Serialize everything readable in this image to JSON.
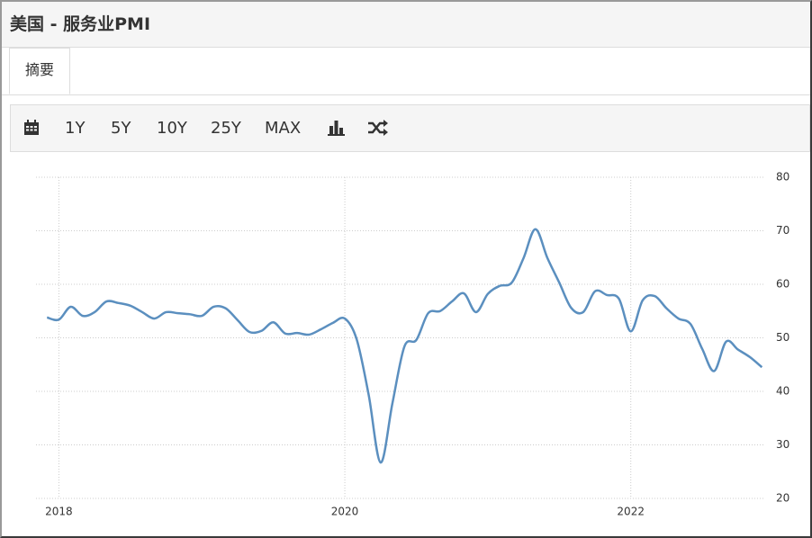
{
  "header": {
    "title": "美国 - 服务业PMI"
  },
  "tabs": [
    "摘要"
  ],
  "toolbar": {
    "ranges": [
      "1Y",
      "5Y",
      "10Y",
      "25Y",
      "MAX"
    ]
  },
  "chart_data": {
    "type": "line",
    "x": [
      2017.917,
      2018,
      2018.083,
      2018.167,
      2018.25,
      2018.333,
      2018.417,
      2018.5,
      2018.583,
      2018.667,
      2018.75,
      2018.833,
      2018.917,
      2019,
      2019.083,
      2019.167,
      2019.25,
      2019.333,
      2019.417,
      2019.5,
      2019.583,
      2019.667,
      2019.75,
      2019.833,
      2019.917,
      2020,
      2020.083,
      2020.167,
      2020.25,
      2020.333,
      2020.417,
      2020.5,
      2020.583,
      2020.667,
      2020.75,
      2020.833,
      2020.917,
      2021,
      2021.083,
      2021.167,
      2021.25,
      2021.333,
      2021.417,
      2021.5,
      2021.583,
      2021.667,
      2021.75,
      2021.833,
      2021.917,
      2022,
      2022.083,
      2022.167,
      2022.25,
      2022.333,
      2022.417,
      2022.5,
      2022.583,
      2022.667,
      2022.75,
      2022.833,
      2022.917
    ],
    "series": [
      {
        "color": "#5b8fbf",
        "values": [
          53.8,
          53.4,
          55.8,
          54.1,
          54.8,
          56.8,
          56.5,
          56.0,
          54.8,
          53.6,
          54.8,
          54.6,
          54.4,
          54.1,
          55.8,
          55.5,
          53.3,
          51.1,
          51.3,
          52.9,
          50.8,
          50.9,
          50.6,
          51.6,
          52.8,
          53.6,
          49.7,
          39.3,
          26.7,
          37.8,
          48.4,
          49.6,
          54.6,
          55.0,
          56.8,
          58.3,
          54.8,
          58.2,
          59.7,
          60.3,
          64.9,
          70.3,
          64.9,
          60.3,
          55.6,
          54.8,
          58.7,
          58.0,
          57.3,
          51.2,
          57.0,
          57.8,
          55.5,
          53.6,
          52.6,
          47.9,
          43.8,
          49.3,
          47.8,
          46.4,
          44.5
        ]
      }
    ],
    "xlim": [
      2017.84,
      2022.94
    ],
    "xticks": [
      2018,
      2020,
      2022
    ],
    "ylim": [
      20,
      80
    ],
    "yticks": [
      20,
      30,
      40,
      50,
      60,
      70,
      80
    ],
    "grid": true
  }
}
